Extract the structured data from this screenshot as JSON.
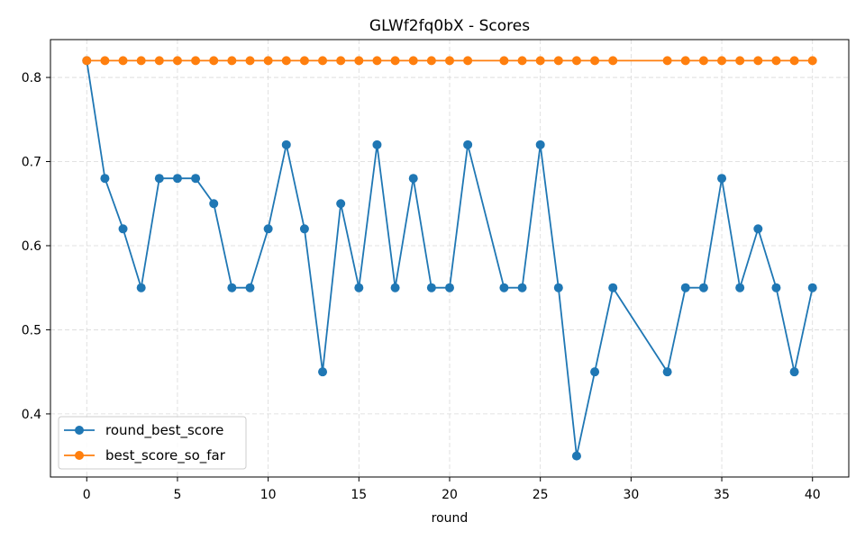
{
  "chart_data": {
    "type": "line",
    "title": "GLWf2fq0bX - Scores",
    "xlabel": "round",
    "ylabel": "",
    "xlim": [
      -2,
      42
    ],
    "ylim": [
      0.325,
      0.845
    ],
    "xticks": [
      0,
      5,
      10,
      15,
      20,
      25,
      30,
      35,
      40
    ],
    "yticks": [
      0.4,
      0.5,
      0.6,
      0.7,
      0.8
    ],
    "grid": true,
    "legend_position": "lower-left",
    "series": [
      {
        "name": "round_best_score",
        "color": "#1f77b4",
        "x": [
          0,
          1,
          2,
          3,
          4,
          5,
          6,
          7,
          8,
          9,
          10,
          11,
          12,
          13,
          14,
          15,
          16,
          17,
          18,
          19,
          20,
          21,
          23,
          24,
          25,
          26,
          27,
          28,
          29,
          32,
          33,
          34,
          35,
          36,
          37,
          38,
          39,
          40
        ],
        "y": [
          0.82,
          0.68,
          0.62,
          0.55,
          0.68,
          0.68,
          0.68,
          0.65,
          0.55,
          0.55,
          0.62,
          0.72,
          0.62,
          0.45,
          0.65,
          0.55,
          0.72,
          0.55,
          0.68,
          0.55,
          0.55,
          0.72,
          0.55,
          0.55,
          0.72,
          0.55,
          0.35,
          0.45,
          0.55,
          0.45,
          0.55,
          0.55,
          0.68,
          0.55,
          0.62,
          0.55,
          0.45,
          0.55
        ]
      },
      {
        "name": "best_score_so_far",
        "color": "#ff7f0e",
        "x": [
          0,
          1,
          2,
          3,
          4,
          5,
          6,
          7,
          8,
          9,
          10,
          11,
          12,
          13,
          14,
          15,
          16,
          17,
          18,
          19,
          20,
          21,
          23,
          24,
          25,
          26,
          27,
          28,
          29,
          32,
          33,
          34,
          35,
          36,
          37,
          38,
          39,
          40
        ],
        "y": [
          0.82,
          0.82,
          0.82,
          0.82,
          0.82,
          0.82,
          0.82,
          0.82,
          0.82,
          0.82,
          0.82,
          0.82,
          0.82,
          0.82,
          0.82,
          0.82,
          0.82,
          0.82,
          0.82,
          0.82,
          0.82,
          0.82,
          0.82,
          0.82,
          0.82,
          0.82,
          0.82,
          0.82,
          0.82,
          0.82,
          0.82,
          0.82,
          0.82,
          0.82,
          0.82,
          0.82,
          0.82,
          0.82
        ]
      }
    ]
  }
}
